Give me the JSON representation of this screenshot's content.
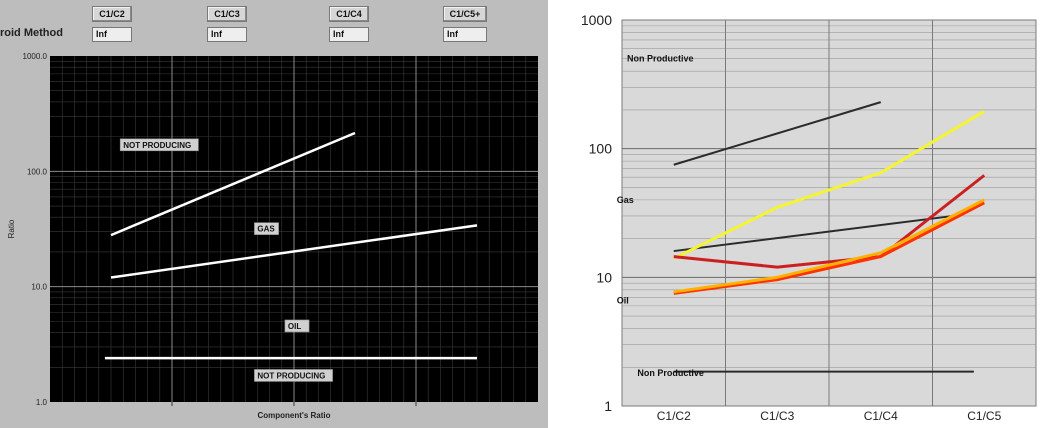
{
  "left_panel": {
    "method_label": "roid Method",
    "columns": [
      {
        "button": "C1/C2",
        "value": "Inf"
      },
      {
        "button": "C1/C3",
        "value": "Inf"
      },
      {
        "button": "C1/C4",
        "value": "Inf"
      },
      {
        "button": "C1/C5+",
        "value": "Inf"
      }
    ]
  },
  "colors": {
    "left_background": "#000000",
    "left_lines": "#ffffff",
    "right_background": "#d9d9d9",
    "right_black": "#2b2b2b",
    "yellow": "#f4f430",
    "red": "#cc2020",
    "orange_red": "#ff3300",
    "orange": "#ffb000"
  },
  "chart_data": [
    {
      "type": "line",
      "title": "",
      "xlabel": "Component's Ratio",
      "ylabel": "Ratio",
      "yscale": "log",
      "ylim": [
        1,
        1000
      ],
      "xlim": [
        0,
        4
      ],
      "y_tick_labels": [
        "1.0",
        "10.0",
        "100.0",
        "1000.0"
      ],
      "grid": true,
      "zone_labels": [
        {
          "text": "NOT PRODUCING",
          "x": 0.6,
          "y": 160
        },
        {
          "text": "GAS",
          "x": 1.7,
          "y": 30
        },
        {
          "text": "OIL",
          "x": 1.95,
          "y": 4.3
        },
        {
          "text": "NOT PRODUCING",
          "x": 1.7,
          "y": 1.6
        }
      ],
      "series": [
        {
          "x": [
            0.5,
            2.5
          ],
          "y": [
            28,
            215
          ]
        },
        {
          "x": [
            0.5,
            3.5
          ],
          "y": [
            12,
            34
          ]
        },
        {
          "x": [
            0.45,
            3.5
          ],
          "y": [
            2.4,
            2.4
          ]
        }
      ]
    },
    {
      "type": "line",
      "title": "",
      "xlabel": "",
      "ylabel": "",
      "yscale": "log",
      "ylim": [
        1,
        1000
      ],
      "y_tick_labels": [
        "1",
        "10",
        "100",
        "1000"
      ],
      "categories": [
        "C1/C2",
        "C1/C3",
        "C1/C4",
        "C1/C5"
      ],
      "grid": true,
      "zone_labels": [
        {
          "text": "Non Productive",
          "x": 0.3,
          "y": 500
        },
        {
          "text": "Gas",
          "x": 0.2,
          "y": 40
        },
        {
          "text": "Oil",
          "x": 0.2,
          "y": 6.6
        },
        {
          "text": "Non  Productive",
          "x": 0.4,
          "y": 1.8
        }
      ],
      "series": [
        {
          "x": [
            0.5,
            2.5
          ],
          "y": [
            75,
            230
          ],
          "color_key": "right_black"
        },
        {
          "x": [
            0.5,
            3.2
          ],
          "y": [
            16,
            30
          ],
          "color_key": "right_black"
        },
        {
          "x": [
            0.5,
            3.4
          ],
          "y": [
            1.85,
            1.85
          ],
          "color_key": "right_black"
        },
        {
          "x": [
            0.5,
            1.5,
            2.5,
            3.5
          ],
          "y": [
            14,
            35,
            65,
            195
          ],
          "color_key": "yellow"
        },
        {
          "x": [
            0.5,
            1.5,
            2.5,
            3.5
          ],
          "y": [
            14.5,
            12,
            14.5,
            62
          ],
          "color_key": "red"
        },
        {
          "x": [
            0.5,
            1.5,
            2.5,
            3.5
          ],
          "y": [
            7.5,
            9.6,
            14.5,
            38
          ],
          "color_key": "orange_red"
        },
        {
          "x": [
            0.5,
            1.5,
            2.5,
            3.5
          ],
          "y": [
            7.7,
            10,
            15.5,
            40
          ],
          "color_key": "orange"
        }
      ]
    }
  ]
}
